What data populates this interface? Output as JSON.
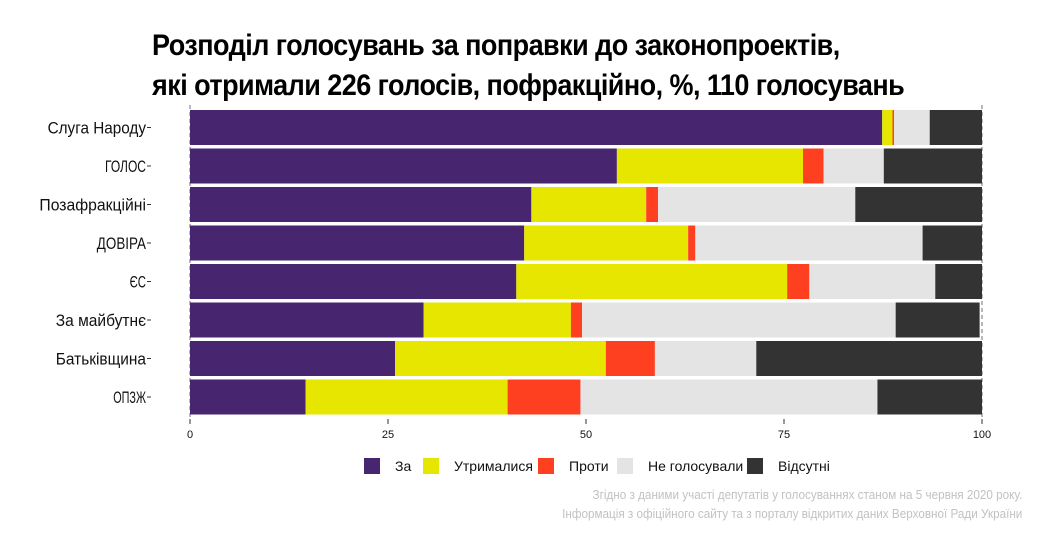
{
  "chart_data": {
    "type": "bar",
    "orientation": "horizontal",
    "stacked": true,
    "title_lines": [
      "Розподіл голосувань за поправки до законопроектів,",
      "які отримали 226 голосів, пофракційно, %, 110 голосувань"
    ],
    "xlabel": "",
    "ylabel": "",
    "xlim": [
      0,
      100
    ],
    "xticks": [
      "0",
      "25",
      "50",
      "75",
      "100"
    ],
    "xtick_values": [
      0,
      25,
      50,
      75,
      100
    ],
    "grid": false,
    "legend_position": "bottom",
    "categories": [
      "Слуга Народу",
      "ГОЛОС",
      "Позафракційні",
      "ДОВІРА",
      "ЄС",
      "За майбутнє",
      "Батьківщина",
      "ОПЗЖ"
    ],
    "series": [
      {
        "name": "За",
        "color": "#47266f",
        "values": [
          87.4,
          53.9,
          43.1,
          42.2,
          41.2,
          29.5,
          25.9,
          14.6
        ]
      },
      {
        "name": "Утрималися",
        "color": "#e6e600",
        "values": [
          1.3,
          23.5,
          14.5,
          20.7,
          34.2,
          18.6,
          26.6,
          25.5
        ]
      },
      {
        "name": "Проти",
        "color": "#ff4020",
        "values": [
          0.2,
          2.6,
          1.5,
          0.9,
          2.8,
          1.4,
          6.2,
          9.2
        ]
      },
      {
        "name": "Не голосували",
        "color": "#e4e4e4",
        "values": [
          4.5,
          7.6,
          24.9,
          28.7,
          15.9,
          39.6,
          12.8,
          37.5
        ]
      },
      {
        "name": "Відсутні",
        "color": "#333333",
        "values": [
          6.6,
          12.4,
          16.0,
          7.5,
          5.9,
          10.6,
          28.5,
          13.2
        ]
      }
    ],
    "caption_lines": [
      "Згідно з даними участі депутатів у голосуваннях станом на 5 червня 2020 року.",
      "Інформація з офіційного сайту та з порталу відкритих даних Верховної Ради України"
    ]
  }
}
